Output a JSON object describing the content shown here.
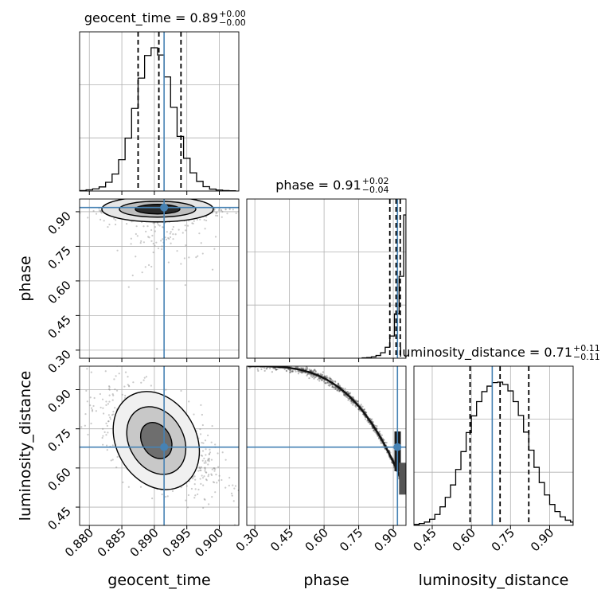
{
  "chart_data": {
    "type": "corner",
    "parameters": [
      "geocent_time",
      "phase",
      "luminosity_distance"
    ],
    "truths": [
      0.8915,
      0.918,
      0.68
    ],
    "ranges": [
      [
        0.8785,
        0.903
      ],
      [
        0.265,
        0.955
      ],
      [
        0.38,
        0.99
      ]
    ],
    "axis_labels": {
      "x": [
        "geocent_time",
        "phase",
        "luminosity_distance"
      ],
      "y": [
        "phase",
        "luminosity_distance"
      ]
    },
    "ticks": {
      "geocent_time": [
        0.88,
        0.885,
        0.89,
        0.895,
        0.9
      ],
      "phase": [
        0.3,
        0.45,
        0.6,
        0.75,
        0.9
      ],
      "luminosity_distance": [
        0.45,
        0.6,
        0.75,
        0.9
      ]
    },
    "tick_labels": {
      "geocent_time": [
        "0.880",
        "0.885",
        "0.890",
        "0.895",
        "0.900"
      ],
      "phase": [
        "0.30",
        "0.45",
        "0.60",
        "0.75",
        "0.90"
      ],
      "luminosity_distance": [
        "0.45",
        "0.60",
        "0.75",
        "0.90"
      ]
    },
    "titles": [
      {
        "param": "geocent_time",
        "main": "geocent_time = 0.89",
        "plus": "+0.00",
        "minus": "−0.00"
      },
      {
        "param": "phase",
        "main": "phase = 0.91",
        "plus": "+0.02",
        "minus": "−0.04"
      },
      {
        "param": "luminosity_distance",
        "main": "luminosity_distance = 0.71",
        "plus": "+0.11",
        "minus": "−0.11"
      }
    ],
    "quantiles": [
      [
        0.8875,
        0.8907,
        0.8941
      ],
      [
        0.885,
        0.912,
        0.93
      ],
      [
        0.595,
        0.71,
        0.82
      ]
    ],
    "histograms": [
      {
        "param": "geocent_time",
        "bin_edges": [
          0.8785,
          0.8795,
          0.8805,
          0.8815,
          0.8825,
          0.8835,
          0.8845,
          0.8855,
          0.8865,
          0.8875,
          0.8885,
          0.8895,
          0.8905,
          0.8915,
          0.8925,
          0.8935,
          0.8945,
          0.8955,
          0.8965,
          0.8975,
          0.8985,
          0.8995,
          0.9005,
          0.9015,
          0.9025
        ],
        "counts": [
          2,
          5,
          9,
          17,
          36,
          70,
          129,
          218,
          340,
          465,
          558,
          590,
          560,
          470,
          345,
          225,
          135,
          75,
          40,
          18,
          8,
          4,
          2,
          1
        ]
      },
      {
        "param": "phase",
        "bin_edges": [
          0.765,
          0.785,
          0.805,
          0.825,
          0.845,
          0.865,
          0.885,
          0.905,
          0.925,
          0.945,
          0.955
        ],
        "counts": [
          1,
          2,
          4,
          8,
          16,
          32,
          65,
          130,
          240,
          420
        ]
      },
      {
        "param": "luminosity_distance",
        "bin_edges": [
          0.38,
          0.4,
          0.42,
          0.44,
          0.46,
          0.48,
          0.5,
          0.52,
          0.54,
          0.56,
          0.58,
          0.6,
          0.62,
          0.64,
          0.66,
          0.68,
          0.7,
          0.72,
          0.74,
          0.76,
          0.78,
          0.8,
          0.82,
          0.84,
          0.86,
          0.88,
          0.9,
          0.92,
          0.94,
          0.96,
          0.98,
          0.99
        ],
        "counts": [
          4,
          8,
          14,
          26,
          46,
          78,
          118,
          170,
          235,
          310,
          390,
          460,
          520,
          562,
          585,
          600,
          602,
          592,
          565,
          520,
          462,
          392,
          316,
          244,
          180,
          128,
          88,
          58,
          36,
          22,
          14
        ]
      }
    ]
  }
}
